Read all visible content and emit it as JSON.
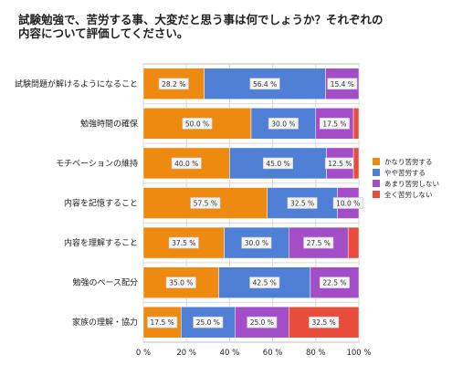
{
  "chart_data": {
    "type": "bar",
    "orientation": "horizontal",
    "stacked": true,
    "title": "試験勉強で、苦労する事、大変だと思う事は何でしょうか？それぞれの内容について評価してください。",
    "categories": [
      "試験問題が解けるようになること",
      "勉強時間の確保",
      "モチベーションの維持",
      "内容を記憶すること",
      "内容を理解すること",
      "勉強のペース配分",
      "家族の理解・協力"
    ],
    "series": [
      {
        "name": "かなり苦労する",
        "color": "#ef8a10",
        "values": [
          28.2,
          50.0,
          40.0,
          57.5,
          37.5,
          35.0,
          17.5
        ]
      },
      {
        "name": "やや苦労する",
        "color": "#4f80d6",
        "values": [
          56.4,
          30.0,
          45.0,
          32.5,
          30.0,
          42.5,
          25.0
        ]
      },
      {
        "name": "あまり苦労しない",
        "color": "#a44dc9",
        "values": [
          15.4,
          17.5,
          12.5,
          10.0,
          27.5,
          22.5,
          25.0
        ]
      },
      {
        "name": "全く苦労しない",
        "color": "#e84c3a",
        "values": [
          0,
          2.5,
          2.5,
          0,
          5.0,
          0,
          32.5
        ]
      }
    ],
    "data_labels": [
      [
        "28.2 %",
        "56.4 %",
        "15.4 %",
        ""
      ],
      [
        "50.0 %",
        "30.0 %",
        "17.5 %",
        ""
      ],
      [
        "40.0 %",
        "45.0 %",
        "12.5 %",
        ""
      ],
      [
        "57.5 %",
        "32.5 %",
        "10.0 %",
        ""
      ],
      [
        "37.5 %",
        "30.0 %",
        "27.5 %",
        ""
      ],
      [
        "35.0 %",
        "42.5 %",
        "22.5 %",
        ""
      ],
      [
        "17.5 %",
        "25.0 %",
        "25.0 %",
        "32.5 %"
      ]
    ],
    "xlim": [
      0,
      100
    ],
    "xticks": [
      "0 %",
      "20 %",
      "40 %",
      "60 %",
      "80 %",
      "100 %"
    ],
    "grid": true,
    "legend_position": "right"
  }
}
